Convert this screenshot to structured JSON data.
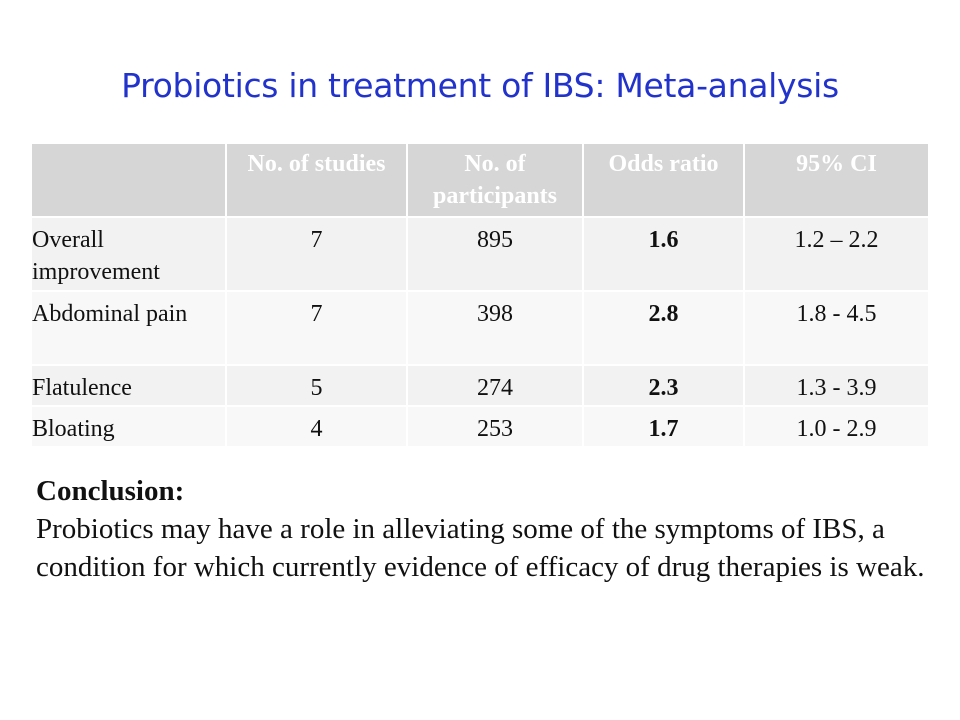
{
  "title": "Probiotics in treatment of IBS: Meta-analysis",
  "table": {
    "headers": [
      "",
      "No. of studies",
      "No. of participants",
      "Odds ratio",
      "95% CI"
    ],
    "rows": [
      {
        "label": "Overall improvement",
        "studies": "7",
        "participants": "895",
        "odds_ratio": "1.6",
        "ci": "1.2 – 2.2"
      },
      {
        "label": "Abdominal pain",
        "studies": "7",
        "participants": "398",
        "odds_ratio": "2.8",
        "ci": "1.8 - 4.5"
      },
      {
        "label": "Flatulence",
        "studies": "5",
        "participants": "274",
        "odds_ratio": "2.3",
        "ci": "1.3 - 3.9"
      },
      {
        "label": "Bloating",
        "studies": "4",
        "participants": "253",
        "odds_ratio": "1.7",
        "ci": "1.0 - 2.9"
      }
    ]
  },
  "conclusion": {
    "heading": "Conclusion:",
    "text": "Probiotics may have a role in alleviating some of the symptoms of IBS, a condition for which currently evidence of efficacy of drug therapies is weak."
  },
  "colors": {
    "title": "#2233cc",
    "header_bg": "#d6d6d6",
    "header_text": "#ffffff",
    "row_bg_odd": "#f2f2f2",
    "row_bg_even": "#f8f8f8"
  }
}
